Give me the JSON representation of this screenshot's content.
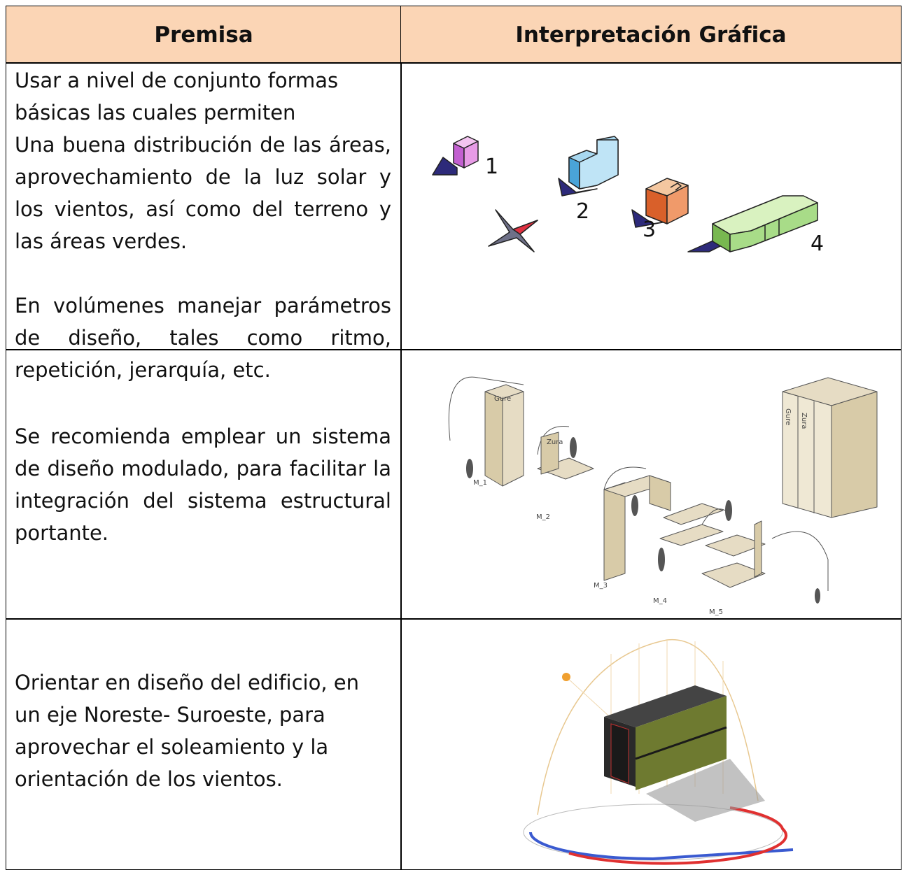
{
  "table": {
    "header": [
      "Premisa",
      "Interpretación Gráfica"
    ],
    "rows": [
      {
        "premise": [
          "Usar  a nivel de conjunto formas básicas las cuales permiten",
          "Una buena distribución de las áreas, aprovechamiento de la luz solar y los vientos, así como del terreno y las áreas verdes.",
          "En volúmenes manejar parámetros de diseño, tales como ritmo, repetición, jerarquía, etc."
        ],
        "figure_labels": [
          "1",
          "2",
          "3",
          "4"
        ]
      },
      {
        "premise": [
          "Se recomienda emplear un sistema de diseño modulado, para facilitar la integración del sistema estructural portante."
        ],
        "figure_labels": [
          "Gure",
          "Zura",
          "M_1",
          "M_2",
          "M_3",
          "M_4",
          "M_5",
          "Gure",
          "Zura"
        ]
      },
      {
        "premise": [
          "Orientar en diseño del edificio, en",
          "un eje Noreste- Suroeste, para",
          "aprovechar el soleamiento y la",
          "orientación de los vientos."
        ]
      }
    ]
  }
}
